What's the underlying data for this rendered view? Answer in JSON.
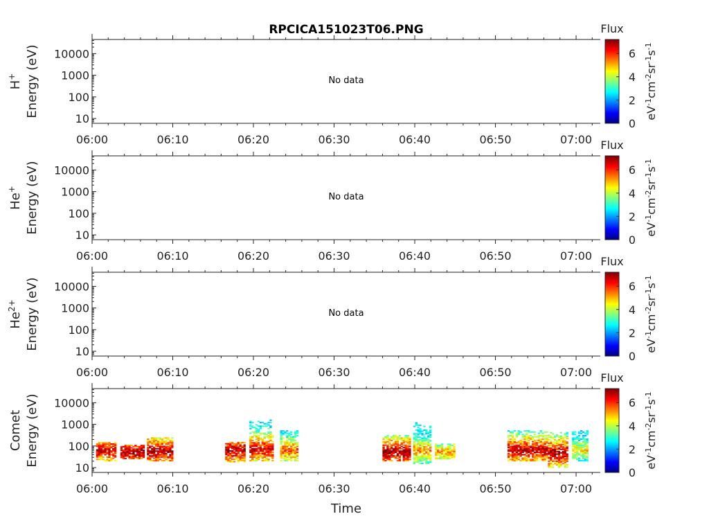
{
  "chart_data": {
    "type": "heatmap",
    "title": "RPCICA151023T06.PNG",
    "xlabel": "Time",
    "x_ticks": [
      "06:00",
      "06:10",
      "06:20",
      "06:30",
      "06:40",
      "06:50",
      "07:00"
    ],
    "x_range_minutes": [
      0,
      63
    ],
    "y_scale": "log",
    "y_ticks": [
      "10",
      "100",
      "1000",
      "10000"
    ],
    "y_range_eV": [
      6,
      45000
    ],
    "colorbar": {
      "label": "Flux",
      "units": "eV-1cm-2sr-1s-1",
      "ticks": [
        "0",
        "2",
        "4",
        "6"
      ],
      "range": [
        0,
        7.2
      ],
      "colormap": "jet"
    },
    "panels": [
      {
        "species": "H+",
        "species_base": "H",
        "species_sup": "+",
        "ylabel": "Energy (eV)",
        "message": "No data",
        "patches": []
      },
      {
        "species": "He+",
        "species_base": "He",
        "species_sup": "+",
        "ylabel": "Energy (eV)",
        "message": "No data",
        "patches": []
      },
      {
        "species": "He2+",
        "species_base": "He",
        "species_sup": "2+",
        "ylabel": "Energy (eV)",
        "message": "No data",
        "patches": []
      },
      {
        "species": "Comet",
        "species_base": "Comet",
        "species_sup": "",
        "ylabel": "Energy (eV)",
        "message": "",
        "patches": [
          {
            "t": [
              0.5,
              2.8
            ],
            "e": [
              20,
              150
            ],
            "core": 60,
            "peak": 6.8
          },
          {
            "t": [
              3.5,
              6.5
            ],
            "e": [
              25,
              110
            ],
            "core": 50,
            "peak": 7.0
          },
          {
            "t": [
              6.8,
              10.0
            ],
            "e": [
              20,
              250
            ],
            "core": 55,
            "peak": 7.0
          },
          {
            "t": [
              16.5,
              19.0
            ],
            "e": [
              18,
              150
            ],
            "core": 60,
            "peak": 7.0
          },
          {
            "t": [
              19.5,
              22.5
            ],
            "e": [
              20,
              1500
            ],
            "core": 70,
            "peak": 6.8
          },
          {
            "t": [
              23.3,
              25.5
            ],
            "e": [
              20,
              500
            ],
            "core": 60,
            "peak": 5.8
          },
          {
            "t": [
              36.0,
              39.5
            ],
            "e": [
              20,
              300
            ],
            "core": 50,
            "peak": 7.0
          },
          {
            "t": [
              39.8,
              42.0
            ],
            "e": [
              15,
              1200
            ],
            "core": 60,
            "peak": 5.5
          },
          {
            "t": [
              42.5,
              45.0
            ],
            "e": [
              25,
              120
            ],
            "core": 50,
            "peak": 5.2
          },
          {
            "t": [
              51.5,
              56.5
            ],
            "e": [
              20,
              500
            ],
            "core": 60,
            "peak": 6.9
          },
          {
            "t": [
              56.5,
              59.0
            ],
            "e": [
              10,
              400
            ],
            "core": 45,
            "peak": 7.0
          },
          {
            "t": [
              59.5,
              61.5
            ],
            "e": [
              20,
              500
            ],
            "core": 60,
            "peak": 4.8
          }
        ]
      }
    ]
  }
}
